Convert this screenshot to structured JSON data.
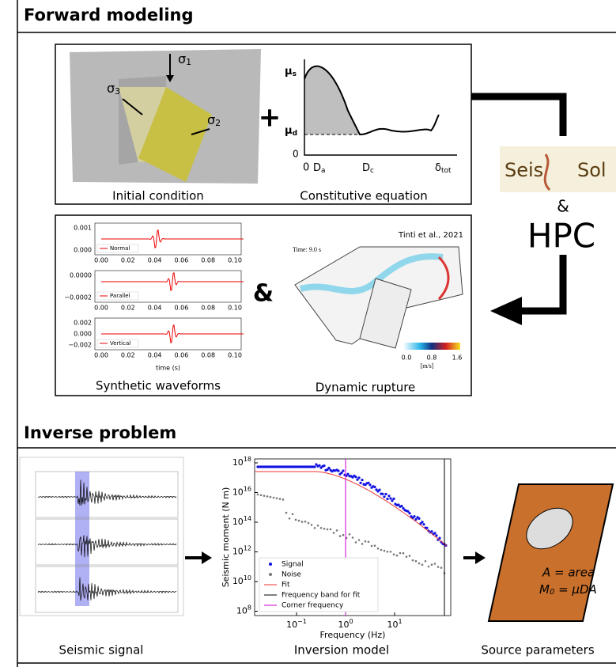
{
  "forward": {
    "title": "Forward modeling",
    "initial_condition": {
      "caption": "Initial condition",
      "sigma1": {
        "symbol": "σ",
        "sub": "1"
      },
      "sigma2": {
        "symbol": "σ",
        "sub": "2"
      },
      "sigma3": {
        "symbol": "σ",
        "sub": "3"
      },
      "plus": "+"
    },
    "constitutive": {
      "caption": "Constitutive equation",
      "mu_s": {
        "symbol": "μ",
        "sub": "s"
      },
      "mu_d": {
        "symbol": "μ",
        "sub": "d"
      },
      "y0": "0",
      "x0": "0",
      "Da": {
        "symbol": "D",
        "sub": "a"
      },
      "Dc": {
        "symbol": "D",
        "sub": "c"
      },
      "dtot": {
        "symbol": "δ",
        "sub": "tot"
      }
    },
    "waveforms": {
      "caption": "Synthetic waveforms",
      "xlabel": "time (s)",
      "xticks": [
        "0.00",
        "0.02",
        "0.04",
        "0.06",
        "0.08",
        "0.10"
      ],
      "panels": [
        {
          "label": "Normal",
          "yticks": [
            "0.001",
            "0.000"
          ]
        },
        {
          "label": "Parallel",
          "yticks": [
            "0.0000",
            "−0.0002"
          ]
        },
        {
          "label": "Vertical",
          "yticks": [
            "0.002",
            "0.000",
            "−0.002"
          ]
        }
      ]
    },
    "amp": "&",
    "rupture": {
      "caption": "Dynamic rupture",
      "citation": "Tinti et al., 2021",
      "time": "Time: 9.0 s",
      "colorbar_ticks": [
        "0.0",
        "0.8",
        "1.6"
      ],
      "unit": "[m/s]"
    },
    "hpc": {
      "logo_left": "Seis",
      "logo_right": "Sol",
      "amp": "&",
      "label": "HPC"
    }
  },
  "inverse": {
    "title": "Inverse problem",
    "signal": {
      "caption": "Seismic signal"
    },
    "inversion": {
      "caption": "Inversion model",
      "ylabel": "Seismic moment (N m)",
      "xlabel": "Frequency (Hz)",
      "yticks": [
        {
          "base": "10",
          "exp": "18"
        },
        {
          "base": "10",
          "exp": "16"
        },
        {
          "base": "10",
          "exp": "14"
        },
        {
          "base": "10",
          "exp": "12"
        },
        {
          "base": "10",
          "exp": "10"
        },
        {
          "base": "10",
          "exp": "8"
        }
      ],
      "xticks": [
        {
          "base": "10",
          "exp": "−1"
        },
        {
          "base": "10",
          "exp": "0"
        },
        {
          "base": "10",
          "exp": "1"
        }
      ],
      "legend": [
        "Signal",
        "Noise",
        "Fit",
        "Frequency band for fit",
        "Corner frequency"
      ]
    },
    "source": {
      "caption": "Source parameters",
      "area": "A = area",
      "moment": {
        "M": "M",
        "sub": "0",
        "rest": " = μDA"
      }
    }
  }
}
